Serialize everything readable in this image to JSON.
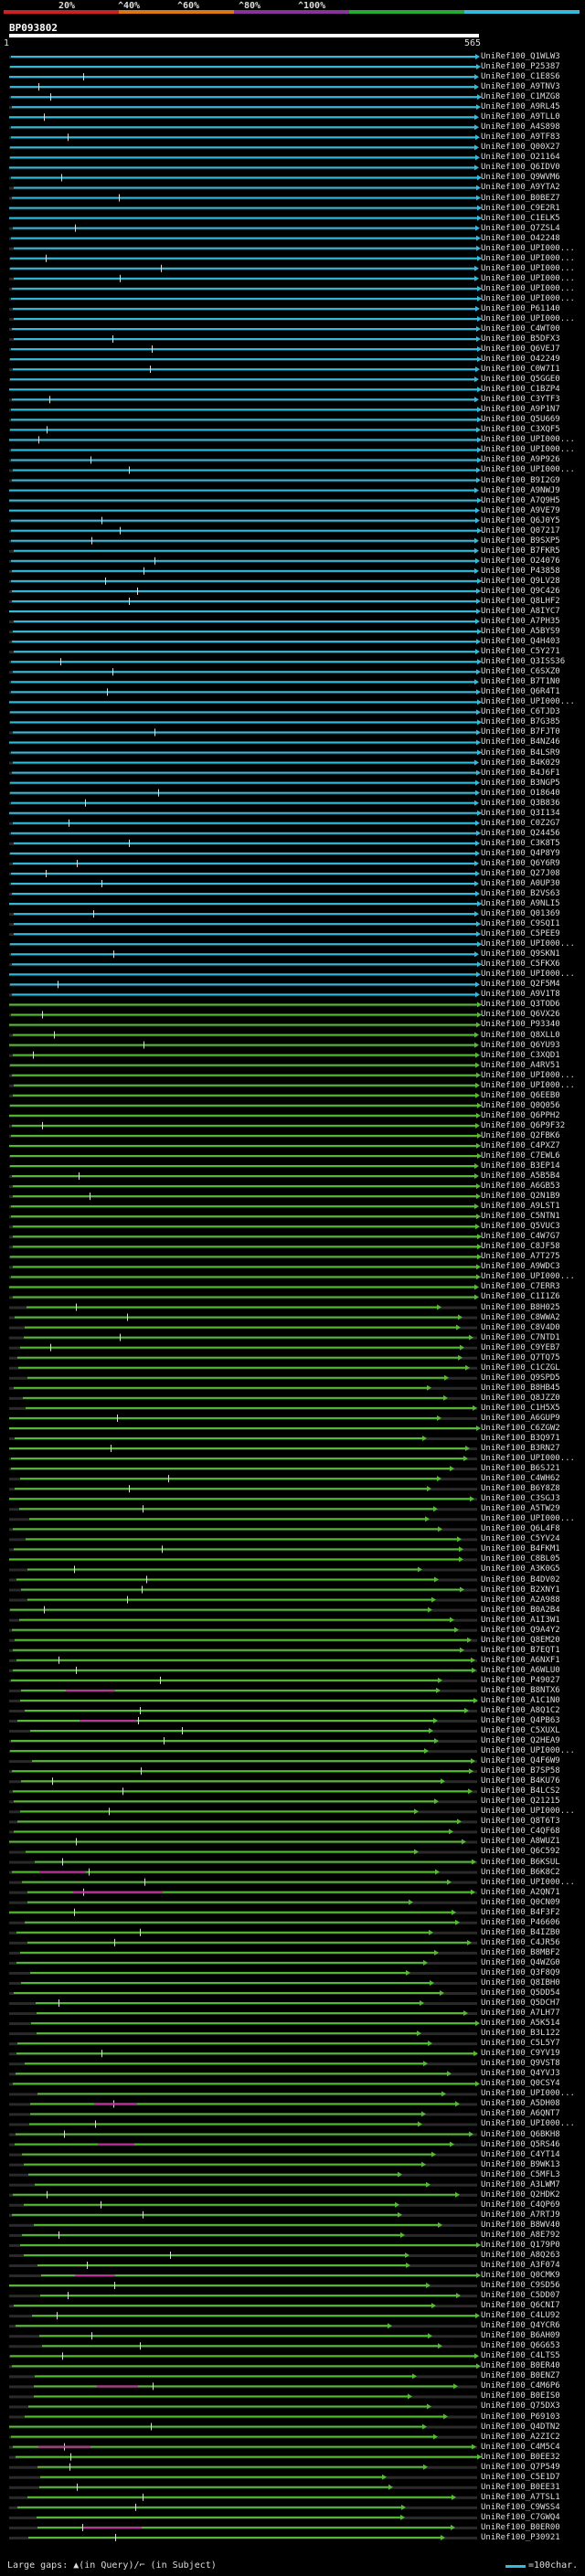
{
  "scale": {
    "labels": [
      "20%",
      "^40%",
      "^60%",
      "^80%",
      "^100%"
    ],
    "bands": [
      "#cc2222",
      "#dd7711",
      "#883399",
      "#22aa33",
      "#33bbdd"
    ]
  },
  "query": {
    "name": "BP093802",
    "start": "1",
    "end": "565"
  },
  "colors": {
    "query": "#ffffff",
    "blue": "#33bbdd",
    "green": "#55bb33",
    "magenta": "#bb3399",
    "unmatched": "#2a2a2a"
  },
  "legend": {
    "text": "Large gaps: ▲(in Query)/⌐ (in Subject)",
    "swatch_label": "=100char."
  },
  "hits": [
    "UniRef100_Q1WLW3",
    "UniRef100_P25387",
    "UniRef100_C1E8S6",
    "UniRef100_A9TNV3",
    "UniRef100_C1MZG8",
    "UniRef100_A9RL45",
    "UniRef100_A9TLL0",
    "UniRef100_A4S898",
    "UniRef100_A9TF83",
    "UniRef100_Q00X27",
    "UniRef100_O21164",
    "UniRef100_Q6IDV0",
    "UniRef100_Q9WVM6",
    "UniRef100_A9YTA2",
    "UniRef100_B0BEZ7",
    "UniRef100_C9E2R1",
    "UniRef100_C1ELK5",
    "UniRef100_Q7ZSL4",
    "UniRef100_O42248",
    "UniRef100_UPI000...",
    "UniRef100_UPI000...",
    "UniRef100_UPI000...",
    "UniRef100_UPI000...",
    "UniRef100_UPI000...",
    "UniRef100_UPI000...",
    "UniRef100_P61140",
    "UniRef100_UPI000...",
    "UniRef100_C4WT00",
    "UniRef100_B5DFX3",
    "UniRef100_Q6VEJ7",
    "UniRef100_O42249",
    "UniRef100_C0W7I1",
    "UniRef100_Q5GGE0",
    "UniRef100_C1BZP4",
    "UniRef100_C3YTF3",
    "UniRef100_A9P1N7",
    "UniRef100_Q5U669",
    "UniRef100_C3XQF5",
    "UniRef100_UPI000...",
    "UniRef100_UPI000...",
    "UniRef100_A9P926",
    "UniRef100_UPI000...",
    "UniRef100_B9I2G9",
    "UniRef100_A9NWJ9",
    "UniRef100_A7Q9H5",
    "UniRef100_A9VE79",
    "UniRef100_Q6J0Y5",
    "UniRef100_Q07217",
    "UniRef100_B9SXP5",
    "UniRef100_B7FKR5",
    "UniRef100_O24076",
    "UniRef100_P43858",
    "UniRef100_Q9LV28",
    "UniRef100_Q9C426",
    "UniRef100_Q8LHF2",
    "UniRef100_A8IYC7",
    "UniRef100_A7PH35",
    "UniRef100_A5BYS9",
    "UniRef100_Q4H403",
    "UniRef100_C5Y271",
    "UniRef100_Q3ISS36",
    "UniRef100_C6SXZ0",
    "UniRef100_B7T1N0",
    "UniRef100_Q6R4T1",
    "UniRef100_UPI000...",
    "UniRef100_C6TJD3",
    "UniRef100_B7G385",
    "UniRef100_B7FJT0",
    "UniRef100_B4NZ46",
    "UniRef100_B4LSR9",
    "UniRef100_B4K029",
    "UniRef100_B4J6F1",
    "UniRef100_B3NGP5",
    "UniRef100_O18640",
    "UniRef100_Q3B836",
    "UniRef100_Q3I134",
    "UniRef100_C0Z2G7",
    "UniRef100_Q24456",
    "UniRef100_C3K8T5",
    "UniRef100_Q4P8Y9",
    "UniRef100_Q6Y6R9",
    "UniRef100_Q27J08",
    "UniRef100_A0UP30",
    "UniRef100_B2VS63",
    "UniRef100_A9NLI5",
    "UniRef100_Q01369",
    "UniRef100_C9SQI1",
    "UniRef100_C5PEE9",
    "UniRef100_UPI000...",
    "UniRef100_Q9SKN1",
    "UniRef100_C5FKX6",
    "UniRef100_UPI000...",
    "UniRef100_Q2F5M4",
    "UniRef100_A9V1T8",
    "UniRef100_Q3TOD6",
    "UniRef100_Q6VX26",
    "UniRef100_P93340",
    "UniRef100_Q8XLL0",
    "UniRef100_Q6YU93",
    "UniRef100_C3XQD1",
    "UniRef100_A4RV51",
    "UniRef100_UPI000...",
    "UniRef100_UPI000...",
    "UniRef100_Q6EEB0",
    "UniRef100_Q0Q056",
    "UniRef100_Q6PPH2",
    "UniRef100_Q6P9F32",
    "UniRef100_Q2FBK6",
    "UniRef100_C4PXZ7",
    "UniRef100_C7EWL6",
    "UniRef100_B3EP14",
    "UniRef100_A5B5B4",
    "UniRef100_A6GB53",
    "UniRef100_Q2N1B9",
    "UniRef100_A9LST1",
    "UniRef100_C5NTN1",
    "UniRef100_Q5VUC3",
    "UniRef100_C4W7G7",
    "UniRef100_C8JF58",
    "UniRef100_A7T275",
    "UniRef100_A9WDC3",
    "UniRef100_UPI000...",
    "UniRef100_C7ERR3",
    "UniRef100_C1I1Z6",
    "UniRef100_B8H025",
    "UniRef100_C8WWA2",
    "UniRef100_C8V4D0",
    "UniRef100_C7NTD1",
    "UniRef100_C9YEB7",
    "UniRef100_Q7TQ75",
    "UniRef100_C1CZGL",
    "UniRef100_Q9SPD5",
    "UniRef100_B8HB45",
    "UniRef100_Q8JZZ0",
    "UniRef100_C1H5X5",
    "UniRef100_A6GUP9",
    "UniRef100_C6ZGW2",
    "UniRef100_B3Q971",
    "UniRef100_B3RN27",
    "UniRef100_UPI000...",
    "UniRef100_B6SJ21",
    "UniRef100_C4WH62",
    "UniRef100_B6Y8Z8",
    "UniRef100_C3SGJ3",
    "UniRef100_A5TW29",
    "UniRef100_UPI000...",
    "UniRef100_Q6L4F8",
    "UniRef100_C5YV24",
    "UniRef100_B4FKM1",
    "UniRef100_C8BL05",
    "UniRef100_A3K0G5",
    "UniRef100_B4DV02",
    "UniRef100_B2XNY1",
    "UniRef100_A2A988",
    "UniRef100_B0A2B4",
    "UniRef100_A1I3W1",
    "UniRef100_Q9A4Y2",
    "UniRef100_Q8EM20",
    "UniRef100_B7EQT1",
    "UniRef100_A6NXF1",
    "UniRef100_A6WLU0",
    "UniRef100_P49027",
    "UniRef100_B8NTX6",
    "UniRef100_A1C1N0",
    "UniRef100_A8Q1C2",
    "UniRef100_Q4PB63",
    "UniRef100_C5XUXL",
    "UniRef100_Q2HEA9",
    "UniRef100_UPI000...",
    "UniRef100_Q4F6W9",
    "UniRef100_B7SP58",
    "UniRef100_B4KU76",
    "UniRef100_B4LCS2",
    "UniRef100_Q21215",
    "UniRef100_UPI000...",
    "UniRef100_Q8T6T3",
    "UniRef100_C4QF68",
    "UniRef100_A8WUZ1",
    "UniRef100_Q6C592",
    "UniRef100_B6KSUL",
    "UniRef100_B6K8C2",
    "UniRef100_UPI000...",
    "UniRef100_A2QN71",
    "UniRef100_Q0CN09",
    "UniRef100_B4F3F2",
    "UniRef100_P46606",
    "UniRef100_B4IZB0",
    "UniRef100_C4JR56",
    "UniRef100_B8MBF2",
    "UniRef100_Q4WZG0",
    "UniRef100_Q3F8Q9",
    "UniRef100_Q8IBH0",
    "UniRef100_Q5DD54",
    "UniRef100_Q5DCH7",
    "UniRef100_A7LH77",
    "UniRef100_A5K514",
    "UniRef100_B3L122",
    "UniRef100_C5L5Y7",
    "UniRef100_C9YV19",
    "UniRef100_Q9VST8",
    "UniRef100_Q4YVJ3",
    "UniRef100_Q0CSY4",
    "UniRef100_UPI000...",
    "UniRef100_A5DH08",
    "UniRef100_A6QNT7",
    "UniRef100_UPI000...",
    "UniRef100_Q6BKH8",
    "UniRef100_Q5RS46",
    "UniRef100_C4YT14",
    "UniRef100_B9WK13",
    "UniRef100_C5MFL3",
    "UniRef100_A3LWM7",
    "UniRef100_Q2HDK2",
    "UniRef100_C4QP69",
    "UniRef100_A7RTJ9",
    "UniRef100_B8WV40",
    "UniRef100_A8E792",
    "UniRef100_Q179P0",
    "UniRef100_A8Q263",
    "UniRef100_A3F074",
    "UniRef100_Q0CMK9",
    "UniRef100_C9SD56",
    "UniRef100_C5DD07",
    "UniRef100_Q6CNI7",
    "UniRef100_C4LU92",
    "UniRef100_Q4YCR6",
    "UniRef100_B6AH09",
    "UniRef100_Q6G653",
    "UniRef100_C4LTS5",
    "UniRef100_B0ER40",
    "UniRef100_B0ENZ7",
    "UniRef100_C4M6P6",
    "UniRef100_B0EIS0",
    "UniRef100_Q75DX3",
    "UniRef100_P69103",
    "UniRef100_Q4DTN2",
    "UniRef100_A2ZIC2",
    "UniRef100_C4M5C4",
    "UniRef100_B0EE32",
    "UniRef100_Q7P549",
    "UniRef100_C5E1D7",
    "UniRef100_B0EE31",
    "UniRef100_A7TSL1",
    "UniRef100_C9WSS4",
    "UniRef100_C7GWQ4",
    "UniRef100_B0ER00",
    "UniRef100_P30921"
  ]
}
